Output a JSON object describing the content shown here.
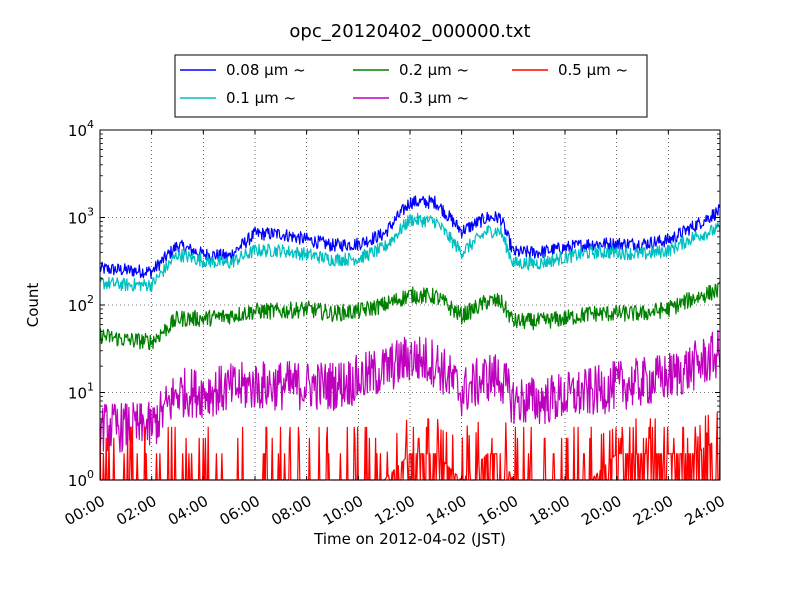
{
  "chart_data": {
    "type": "line",
    "title": "opc_20120402_000000.txt",
    "xlabel": "Time on 2012-04-02 (JST)",
    "ylabel": "Count",
    "y_scale": "log",
    "ylim": [
      1,
      10000
    ],
    "xlim": [
      "00:00",
      "24:00"
    ],
    "x_ticks": [
      "00:00",
      "02:00",
      "04:00",
      "06:00",
      "08:00",
      "10:00",
      "12:00",
      "14:00",
      "16:00",
      "18:00",
      "20:00",
      "22:00",
      "24:00"
    ],
    "y_ticks": [
      {
        "base": "10",
        "exp": "0"
      },
      {
        "base": "10",
        "exp": "1"
      },
      {
        "base": "10",
        "exp": "2"
      },
      {
        "base": "10",
        "exp": "3"
      },
      {
        "base": "10",
        "exp": "4"
      }
    ],
    "grid": true,
    "legend_position": "top-center",
    "x": [
      "00:00",
      "01:00",
      "02:00",
      "03:00",
      "04:00",
      "05:00",
      "06:00",
      "07:00",
      "08:00",
      "09:00",
      "10:00",
      "11:00",
      "12:00",
      "13:00",
      "14:00",
      "15:00",
      "15:30",
      "16:00",
      "17:00",
      "18:00",
      "19:00",
      "20:00",
      "21:00",
      "22:00",
      "23:00",
      "24:00"
    ],
    "series": [
      {
        "name": "0.08 μm ~",
        "color": "#0000ff",
        "noise": 0.08,
        "values": [
          260,
          250,
          240,
          480,
          380,
          360,
          650,
          650,
          560,
          480,
          500,
          650,
          1500,
          1500,
          700,
          1000,
          1000,
          400,
          400,
          450,
          500,
          500,
          500,
          550,
          800,
          1200
        ]
      },
      {
        "name": "0.1 μm ~",
        "color": "#00bfbf",
        "noise": 0.08,
        "values": [
          180,
          170,
          170,
          380,
          320,
          300,
          420,
          420,
          380,
          330,
          340,
          450,
          950,
          900,
          400,
          700,
          700,
          300,
          300,
          350,
          400,
          400,
          380,
          420,
          600,
          750
        ]
      },
      {
        "name": "0.2 μm ~",
        "color": "#008000",
        "noise": 0.1,
        "values": [
          45,
          40,
          38,
          70,
          70,
          75,
          85,
          85,
          90,
          80,
          85,
          100,
          130,
          125,
          75,
          110,
          110,
          65,
          65,
          70,
          80,
          80,
          80,
          90,
          120,
          150
        ]
      },
      {
        "name": "0.3 μm ~",
        "color": "#bf00bf",
        "noise": 0.3,
        "values": [
          4,
          4,
          4,
          10,
          10,
          11,
          12,
          12,
          12,
          12,
          14,
          18,
          25,
          22,
          10,
          15,
          15,
          8,
          8,
          9,
          10,
          12,
          13,
          15,
          20,
          28
        ]
      },
      {
        "name": "0.5 μm ~",
        "color": "#ff0000",
        "noise": 0.0,
        "values": [
          1,
          1,
          1,
          1,
          1,
          1,
          1,
          1,
          1,
          1,
          1,
          1,
          2,
          2,
          1,
          2,
          2,
          1,
          1,
          1,
          1,
          2,
          2,
          2,
          2,
          3
        ]
      }
    ]
  }
}
